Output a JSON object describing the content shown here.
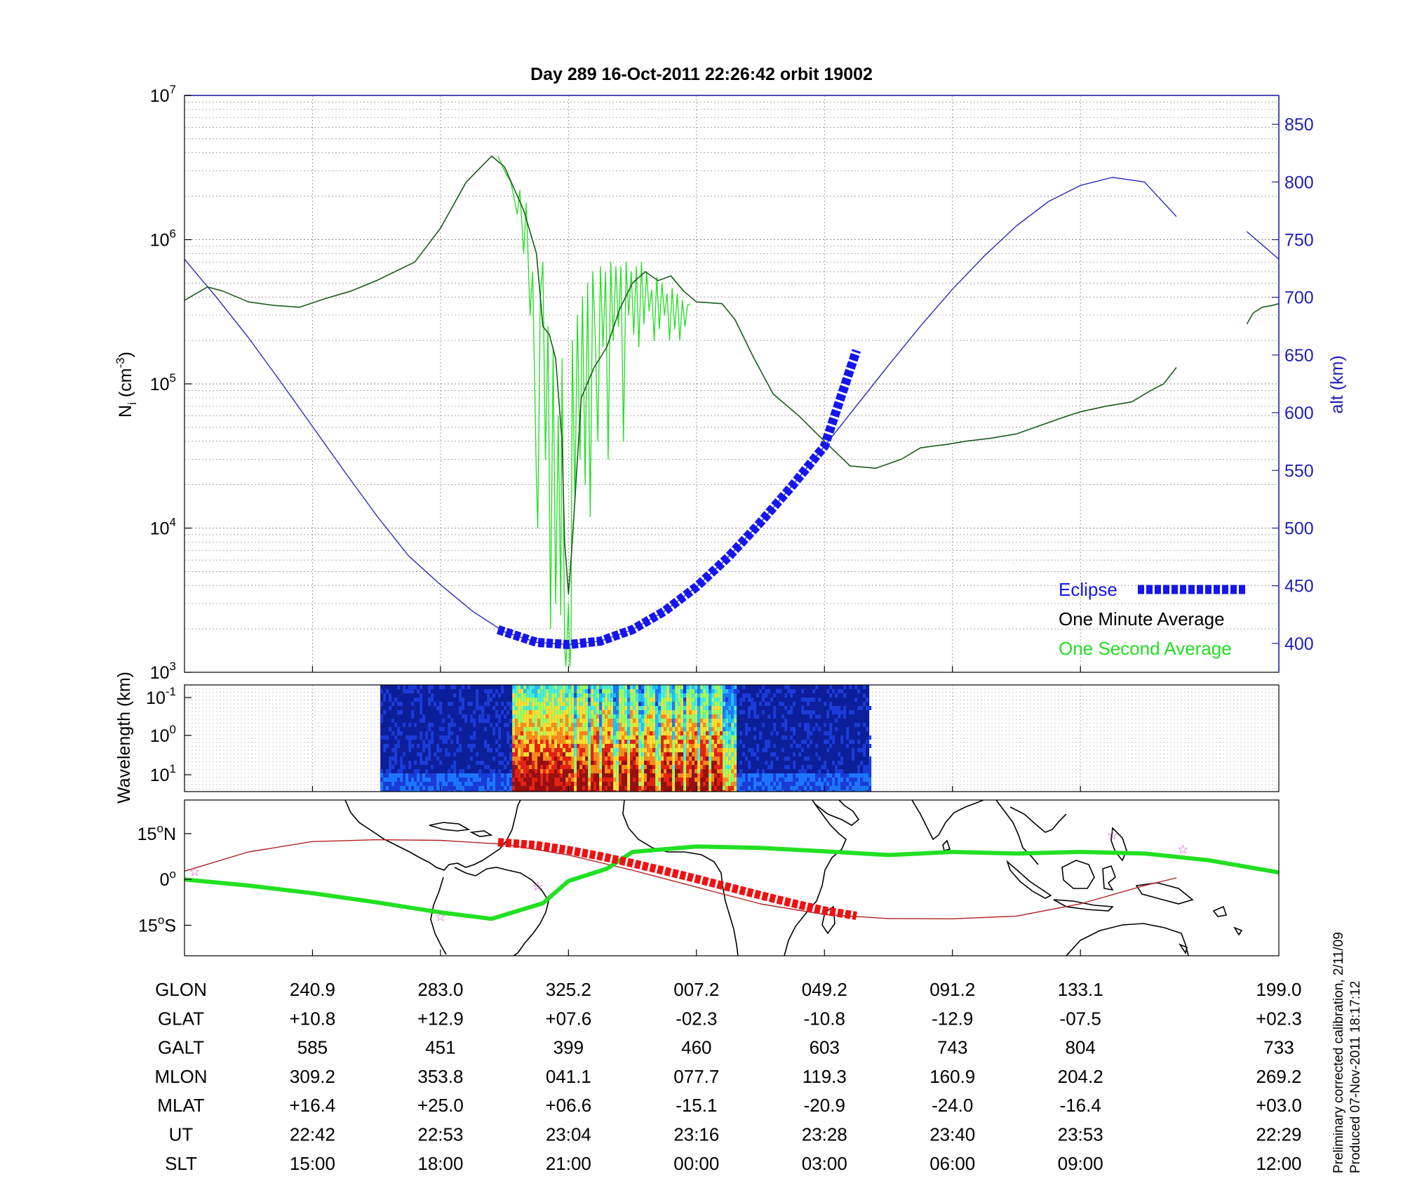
{
  "title": "Day 289  16-Oct-2011 22:26:42   orbit 19002",
  "footer_note": [
    "Preliminary corrected calibration, 2/11/09",
    "Produced 07-Nov-2011 18:17:12"
  ],
  "colors": {
    "one_minute": "#1a5c1a",
    "one_second": "#22dd22",
    "altitude": "#1f1fb4",
    "eclipse": "#1515f0",
    "ground_track": "#22e022",
    "eclipse_track": "#ee1111",
    "terminator": "#b22222",
    "star": "#cc44cc"
  },
  "chart_data": [
    {
      "type": "line",
      "name": "ion-density-panel",
      "xlabel": "",
      "ylabel": "N_i (cm^-3)",
      "ylabel_parts": {
        "base": "N",
        "sub": "i",
        "unit_open": " (cm",
        "unit_exp": "-3",
        "unit_close": ")"
      },
      "yscale": "log",
      "ylim": [
        1000,
        10000000
      ],
      "yticks": [
        {
          "base": "10",
          "exp": "3",
          "value": 1000
        },
        {
          "base": "10",
          "exp": "4",
          "value": 10000
        },
        {
          "base": "10",
          "exp": "5",
          "value": 100000
        },
        {
          "base": "10",
          "exp": "6",
          "value": 1000000
        },
        {
          "base": "10",
          "exp": "7",
          "value": 10000000
        }
      ],
      "y2label": "alt (km)",
      "y2lim": [
        375,
        875
      ],
      "y2ticks": [
        400,
        450,
        500,
        550,
        600,
        650,
        700,
        750,
        800,
        850
      ],
      "xlim": [
        0,
        8.55
      ],
      "xticks": [
        1,
        2,
        3,
        4,
        5,
        6,
        7
      ],
      "legend": {
        "position": "bottom-right",
        "entries": [
          "Eclipse",
          "One Minute Average",
          "One Second Average"
        ]
      },
      "series": [
        {
          "name": "One Minute Average",
          "x": [
            0,
            0.18,
            0.3,
            0.5,
            0.7,
            0.9,
            1.1,
            1.3,
            1.5,
            1.8,
            2.0,
            2.2,
            2.4,
            2.5,
            2.65,
            2.75,
            2.8,
            2.85,
            2.9,
            2.95,
            2.97,
            3.0,
            3.03,
            3.1,
            3.2,
            3.3,
            3.4,
            3.5,
            3.6,
            3.7,
            3.8,
            3.9,
            4.0,
            4.2,
            4.3,
            4.45,
            4.6,
            4.8,
            5.0,
            5.2,
            5.4,
            5.6,
            5.75,
            5.85,
            5.95,
            6.1,
            6.3,
            6.5,
            6.7,
            6.9,
            7.0,
            7.2,
            7.4,
            7.55,
            7.65,
            7.75
          ],
          "y": [
            380000,
            470000,
            440000,
            370000,
            350000,
            340000,
            390000,
            440000,
            520000,
            700000,
            1200000,
            2500000,
            3800000,
            3200000,
            1600000,
            800000,
            250000,
            220000,
            150000,
            40000,
            8000,
            3500,
            8000,
            80000,
            130000,
            180000,
            330000,
            500000,
            600000,
            520000,
            560000,
            440000,
            370000,
            360000,
            280000,
            150000,
            85000,
            60000,
            40000,
            27000,
            26000,
            30000,
            36000,
            37000,
            38000,
            40000,
            42000,
            45000,
            52000,
            60000,
            64000,
            70000,
            75000,
            90000,
            100000,
            130000
          ]
        },
        {
          "name": "One Minute Average (end segment)",
          "x": [
            8.3,
            8.35,
            8.42,
            8.5,
            8.55
          ],
          "y": [
            260000,
            310000,
            340000,
            350000,
            360000
          ]
        },
        {
          "name": "One Second Average",
          "x": [
            2.45,
            2.5,
            2.55,
            2.6,
            2.62,
            2.65,
            2.67,
            2.7,
            2.72,
            2.75,
            2.76,
            2.78,
            2.8,
            2.82,
            2.84,
            2.86,
            2.88,
            2.9,
            2.92,
            2.94,
            2.95,
            2.97,
            2.98,
            3.0,
            3.01,
            3.02,
            3.03,
            3.05,
            3.07,
            3.09,
            3.11,
            3.13,
            3.15,
            3.17,
            3.19,
            3.21,
            3.23,
            3.25,
            3.27,
            3.29,
            3.31,
            3.33,
            3.35,
            3.37,
            3.39,
            3.41,
            3.43,
            3.45,
            3.47,
            3.49,
            3.51,
            3.53,
            3.55,
            3.57,
            3.59,
            3.61,
            3.63,
            3.65,
            3.67,
            3.69,
            3.71,
            3.73,
            3.75,
            3.77,
            3.79,
            3.81,
            3.83,
            3.85,
            3.87,
            3.89,
            3.91,
            3.93,
            3.95
          ],
          "y": [
            3800000,
            3000000,
            2500000,
            1500000,
            2200000,
            800000,
            1800000,
            300000,
            600000,
            20000,
            10000,
            400000,
            700000,
            30000,
            250000,
            2000,
            180000,
            3000,
            60000,
            2500,
            150000,
            1500,
            1100,
            3000,
            1100,
            1500,
            200000,
            15000,
            300000,
            30000,
            400000,
            20000,
            500000,
            12000,
            600000,
            200000,
            40000,
            650000,
            180000,
            600000,
            30000,
            700000,
            200000,
            650000,
            250000,
            650000,
            40000,
            700000,
            300000,
            600000,
            220000,
            650000,
            180000,
            700000,
            260000,
            600000,
            320000,
            450000,
            200000,
            550000,
            240000,
            500000,
            300000,
            420000,
            200000,
            460000,
            240000,
            420000,
            200000,
            380000,
            250000,
            350000,
            360000
          ]
        },
        {
          "name": "Altitude",
          "axis": "right",
          "x": [
            0,
            0.25,
            0.5,
            0.75,
            1.0,
            1.25,
            1.5,
            1.75,
            2.0,
            2.25,
            2.5,
            2.75,
            3.0,
            3.25,
            3.5,
            3.75,
            4.0,
            4.25,
            4.5,
            4.75,
            5.0,
            5.25,
            5.5,
            5.75,
            6.0,
            6.25,
            6.5,
            6.75,
            7.0,
            7.25,
            7.5,
            7.75
          ],
          "y": [
            733,
            700,
            665,
            627,
            588,
            549,
            511,
            476,
            451,
            428,
            410,
            401,
            399,
            402,
            412,
            428,
            449,
            475,
            505,
            537,
            571,
            606,
            641,
            675,
            707,
            736,
            762,
            783,
            797,
            804,
            800,
            770
          ]
        },
        {
          "name": "Altitude (end segment)",
          "axis": "right",
          "x": [
            8.3,
            8.55
          ],
          "y": [
            757,
            733
          ]
        },
        {
          "name": "Eclipse",
          "axis": "right",
          "x": [
            2.45,
            2.75,
            3.0,
            3.25,
            3.5,
            3.75,
            4.0,
            4.25,
            4.5,
            4.75,
            5.0,
            5.25
          ],
          "y": [
            412,
            401,
            399,
            402,
            412,
            428,
            449,
            475,
            505,
            537,
            571,
            654
          ]
        }
      ]
    },
    {
      "type": "heatmap",
      "name": "wavelength-spectrogram-panel",
      "ylabel": "Wavelength (km)",
      "yticks": [
        {
          "base": "10",
          "exp": "-1"
        },
        {
          "base": "10",
          "exp": "0"
        },
        {
          "base": "10",
          "exp": "1"
        }
      ],
      "xlim": [
        0,
        8.55
      ],
      "data_xrange": [
        1.53,
        5.35
      ],
      "active_xrange": [
        2.55,
        4.3
      ],
      "strong_bands_x": [
        2.55,
        2.6,
        2.64,
        2.68,
        2.72,
        2.8,
        2.86,
        2.92,
        3.0,
        3.1,
        3.2,
        3.3,
        3.42,
        3.5,
        3.62,
        3.75,
        3.85,
        3.95,
        4.05,
        4.15
      ]
    },
    {
      "type": "scatter",
      "name": "map-track-panel",
      "yticks": [
        {
          "value": 15,
          "label": "15",
          "deg": "o",
          "hem": "N"
        },
        {
          "value": 0,
          "label": "0",
          "deg": "o",
          "hem": ""
        },
        {
          "value": -15,
          "label": "15",
          "deg": "o",
          "hem": "S"
        }
      ],
      "ylim": [
        -25,
        26
      ],
      "xlim": [
        0,
        8.55
      ],
      "series": [
        {
          "name": "terminator",
          "x": [
            0,
            0.5,
            1.0,
            1.5,
            2.0,
            2.5,
            3.0,
            3.5,
            4.0,
            4.5,
            5.0,
            5.5,
            6.0,
            6.5,
            7.0,
            7.5,
            7.75
          ],
          "y": [
            2.7,
            9,
            12.4,
            13,
            12.8,
            11.5,
            8,
            3,
            -2.5,
            -8,
            -11.5,
            -12.8,
            -12.9,
            -12,
            -8,
            -2,
            0.5
          ]
        },
        {
          "name": "ground-track",
          "x": [
            0,
            0.5,
            1.0,
            1.5,
            2.0,
            2.4,
            2.8,
            3.0,
            3.3,
            3.5,
            4.0,
            4.5,
            5.0,
            5.5,
            6.0,
            6.5,
            7.0,
            7.5,
            8.0,
            8.55
          ],
          "y": [
            0,
            -2,
            -4.5,
            -7.5,
            -10.8,
            -12.9,
            -7.8,
            -0.5,
            3.5,
            9,
            10.8,
            10.3,
            9.2,
            8,
            9,
            8.5,
            9,
            8.5,
            6.3,
            2.3
          ]
        },
        {
          "name": "eclipse-track",
          "x": [
            2.45,
            2.75,
            3.0,
            3.25,
            3.5,
            3.75,
            4.0,
            4.25,
            4.5,
            4.75,
            5.0,
            5.25
          ],
          "y": [
            12.2,
            11.2,
            9.6,
            7.6,
            5.3,
            2.8,
            0.2,
            -2.5,
            -5.2,
            -7.8,
            -10.2,
            -11.9
          ]
        },
        {
          "name": "stars",
          "x": [
            0.08,
            2.0,
            2.76,
            7.25,
            7.8
          ],
          "y": [
            2.8,
            -12,
            -2,
            14.8,
            10
          ]
        }
      ]
    }
  ],
  "table": {
    "row_labels": [
      "GLON",
      "GLAT",
      "GALT",
      "MLON",
      "MLAT",
      "UT",
      "SLT"
    ],
    "columns": [
      [
        "240.9",
        "+10.8",
        "585",
        "309.2",
        "+16.4",
        "22:42",
        "15:00"
      ],
      [
        "283.0",
        "+12.9",
        "451",
        "353.8",
        "+25.0",
        "22:53",
        "18:00"
      ],
      [
        "325.2",
        "+07.6",
        "399",
        "041.1",
        "+06.6",
        "23:04",
        "21:00"
      ],
      [
        "007.2",
        "-02.3",
        "460",
        "077.7",
        "-15.1",
        "23:16",
        "00:00"
      ],
      [
        "049.2",
        "-10.8",
        "603",
        "119.3",
        "-20.9",
        "23:28",
        "03:00"
      ],
      [
        "091.2",
        "-12.9",
        "743",
        "160.9",
        "-24.0",
        "23:40",
        "06:00"
      ],
      [
        "133.1",
        "-07.5",
        "804",
        "204.2",
        "-16.4",
        "23:53",
        "09:00"
      ],
      [
        "199.0",
        "+02.3",
        "733",
        "269.2",
        "+03.0",
        "22:29",
        "12:00"
      ]
    ]
  }
}
